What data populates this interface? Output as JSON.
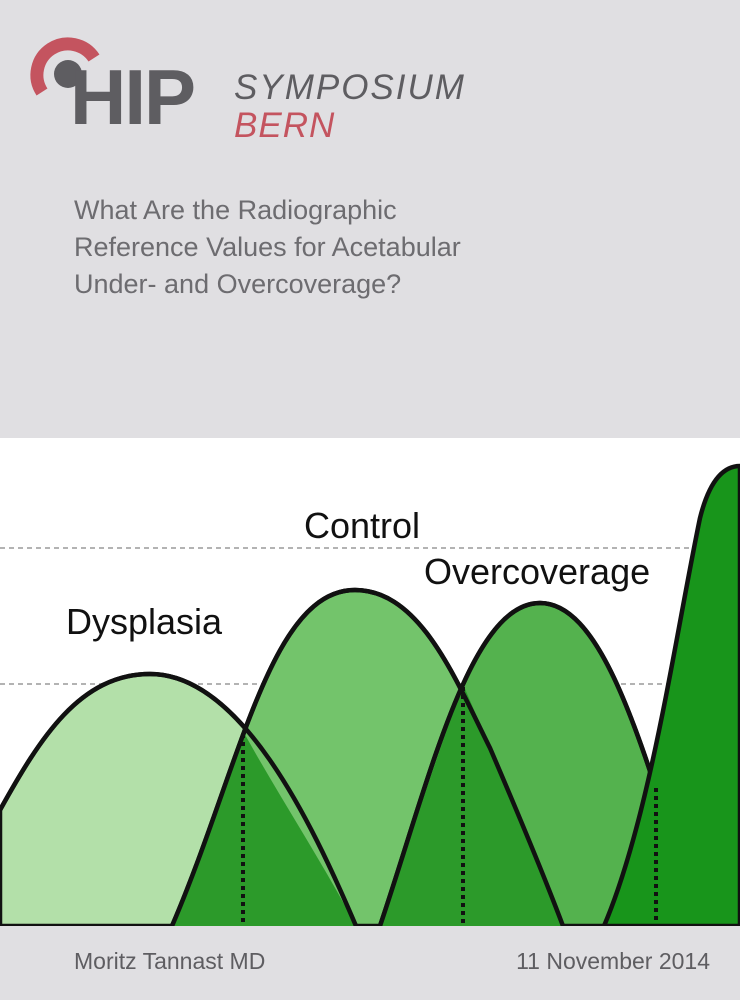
{
  "logo": {
    "hip": "HIP",
    "symposium": "SYMPOSIUM",
    "bern": "BERN"
  },
  "title_lines": [
    "What Are the Radiographic",
    "Reference Values for Acetabular",
    "Under- and Overcoverage?"
  ],
  "figure_labels": {
    "dysplasia": "Dysplasia",
    "control": "Control",
    "overcoverage": "Overcoverage"
  },
  "footer": {
    "author": "Moritz Tannast MD",
    "date": "11 November 2014"
  },
  "colors": {
    "background": "#e0dfe2",
    "brand_red": "#c4545f",
    "logo_gray": "#5e5d61",
    "dysplasia_fill": "#b3e0a9",
    "control_fill": "#73c46b",
    "overcoverage_fill": "#54b24e",
    "overlap_fill": "#2c9a2a",
    "rightmost_fill": "#18951b"
  }
}
